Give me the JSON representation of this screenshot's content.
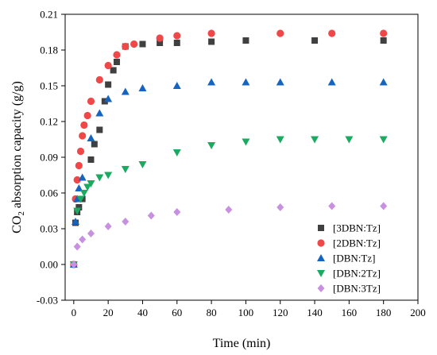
{
  "chart_data": {
    "type": "scatter",
    "title": "",
    "xlabel": "Time (min)",
    "ylabel_prefix": "CO",
    "ylabel_sub": "2",
    "ylabel_suffix": " absorption capacity (g/g)",
    "xlim": [
      -5,
      200
    ],
    "ylim": [
      -0.03,
      0.21
    ],
    "xticks": [
      0,
      20,
      40,
      60,
      80,
      100,
      120,
      140,
      160,
      180,
      200
    ],
    "yticks": [
      -0.03,
      0.0,
      0.03,
      0.06,
      0.09,
      0.12,
      0.15,
      0.18,
      0.21
    ],
    "ytick_labels": [
      "-0.03",
      "0.00",
      "0.03",
      "0.06",
      "0.09",
      "0.12",
      "0.15",
      "0.18",
      "0.21"
    ],
    "grid": false,
    "legend_position": "bottom-right",
    "series": [
      {
        "name": "[3DBN:Tz]",
        "marker": "square",
        "color": "#404040",
        "x": [
          0,
          1,
          2,
          3,
          5,
          10,
          12,
          15,
          18,
          20,
          23,
          25,
          30,
          40,
          50,
          60,
          80,
          100,
          140,
          180
        ],
        "y": [
          0.0,
          0.035,
          0.044,
          0.048,
          0.055,
          0.088,
          0.101,
          0.113,
          0.137,
          0.151,
          0.163,
          0.17,
          0.183,
          0.185,
          0.186,
          0.186,
          0.187,
          0.188,
          0.188,
          0.188
        ]
      },
      {
        "name": "[2DBN:Tz]",
        "marker": "circle",
        "color": "#f04848",
        "x": [
          0,
          1,
          2,
          3,
          4,
          5,
          6,
          8,
          10,
          15,
          20,
          25,
          30,
          35,
          50,
          60,
          80,
          120,
          150,
          180
        ],
        "y": [
          0.0,
          0.055,
          0.071,
          0.083,
          0.095,
          0.108,
          0.117,
          0.125,
          0.137,
          0.155,
          0.167,
          0.176,
          0.183,
          0.185,
          0.19,
          0.192,
          0.194,
          0.194,
          0.194,
          0.194
        ]
      },
      {
        "name": "[DBN:Tz]",
        "marker": "triangle-up",
        "color": "#1565c0",
        "x": [
          0,
          1,
          2,
          3,
          5,
          10,
          15,
          20,
          30,
          40,
          60,
          80,
          100,
          120,
          150,
          180
        ],
        "y": [
          0.0,
          0.036,
          0.055,
          0.064,
          0.073,
          0.106,
          0.127,
          0.139,
          0.145,
          0.148,
          0.15,
          0.153,
          0.153,
          0.153,
          0.153,
          0.153
        ]
      },
      {
        "name": "[DBN:2Tz]",
        "marker": "triangle-down",
        "color": "#1aaa60",
        "x": [
          0,
          2,
          4,
          6,
          8,
          10,
          15,
          20,
          30,
          40,
          60,
          80,
          100,
          120,
          140,
          160,
          180
        ],
        "y": [
          0.0,
          0.045,
          0.055,
          0.06,
          0.065,
          0.068,
          0.073,
          0.075,
          0.08,
          0.084,
          0.094,
          0.1,
          0.103,
          0.105,
          0.105,
          0.105,
          0.105
        ]
      },
      {
        "name": "[DBN:3Tz]",
        "marker": "diamond",
        "color": "#c890e0",
        "x": [
          0,
          2,
          5,
          10,
          20,
          30,
          45,
          60,
          90,
          120,
          150,
          180
        ],
        "y": [
          0.0,
          0.015,
          0.021,
          0.026,
          0.032,
          0.036,
          0.041,
          0.044,
          0.046,
          0.048,
          0.049,
          0.049
        ]
      }
    ]
  }
}
